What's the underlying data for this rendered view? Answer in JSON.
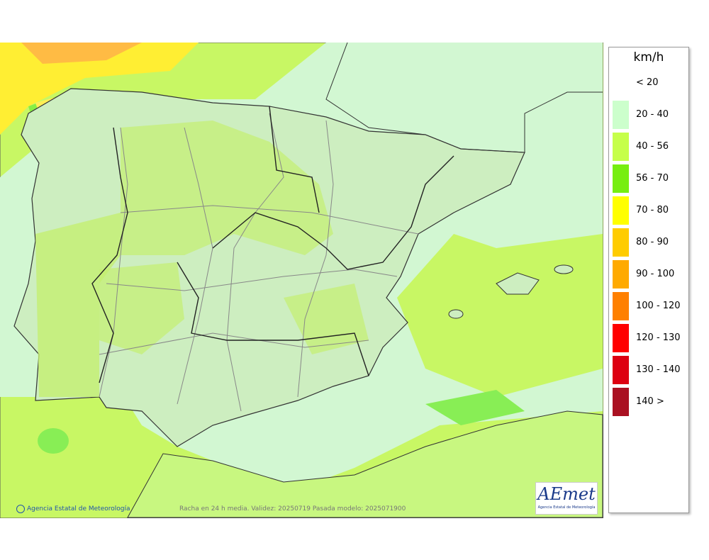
{
  "legend": {
    "title": "km/h",
    "items": [
      {
        "label": "< 20"
      },
      {
        "label": "20 - 40",
        "color": "#ccffcc"
      },
      {
        "label": "40 - 56",
        "color": "#c6ff4a"
      },
      {
        "label": "56 - 70",
        "color": "#77ee11"
      },
      {
        "label": "70 - 80",
        "color": "#ffff00"
      },
      {
        "label": "80 - 90",
        "color": "#ffcc00"
      },
      {
        "label": "90 - 100",
        "color": "#ffaa00"
      },
      {
        "label": "100 - 120",
        "color": "#ff8000"
      },
      {
        "label": "120 - 130",
        "color": "#ff0000"
      },
      {
        "label": "130 - 140",
        "color": "#dd0011"
      },
      {
        "label": "140 >",
        "color": "#aa1122"
      }
    ]
  },
  "footer": {
    "agency": "Agencia Estatal de Meteorología",
    "info": "Racha en 24 h media. Validez: 20250719 Pasada modelo: 2025071900"
  },
  "logo": {
    "name": "AEmet",
    "subtitle": "Agencia Estatal de Meteorología"
  }
}
